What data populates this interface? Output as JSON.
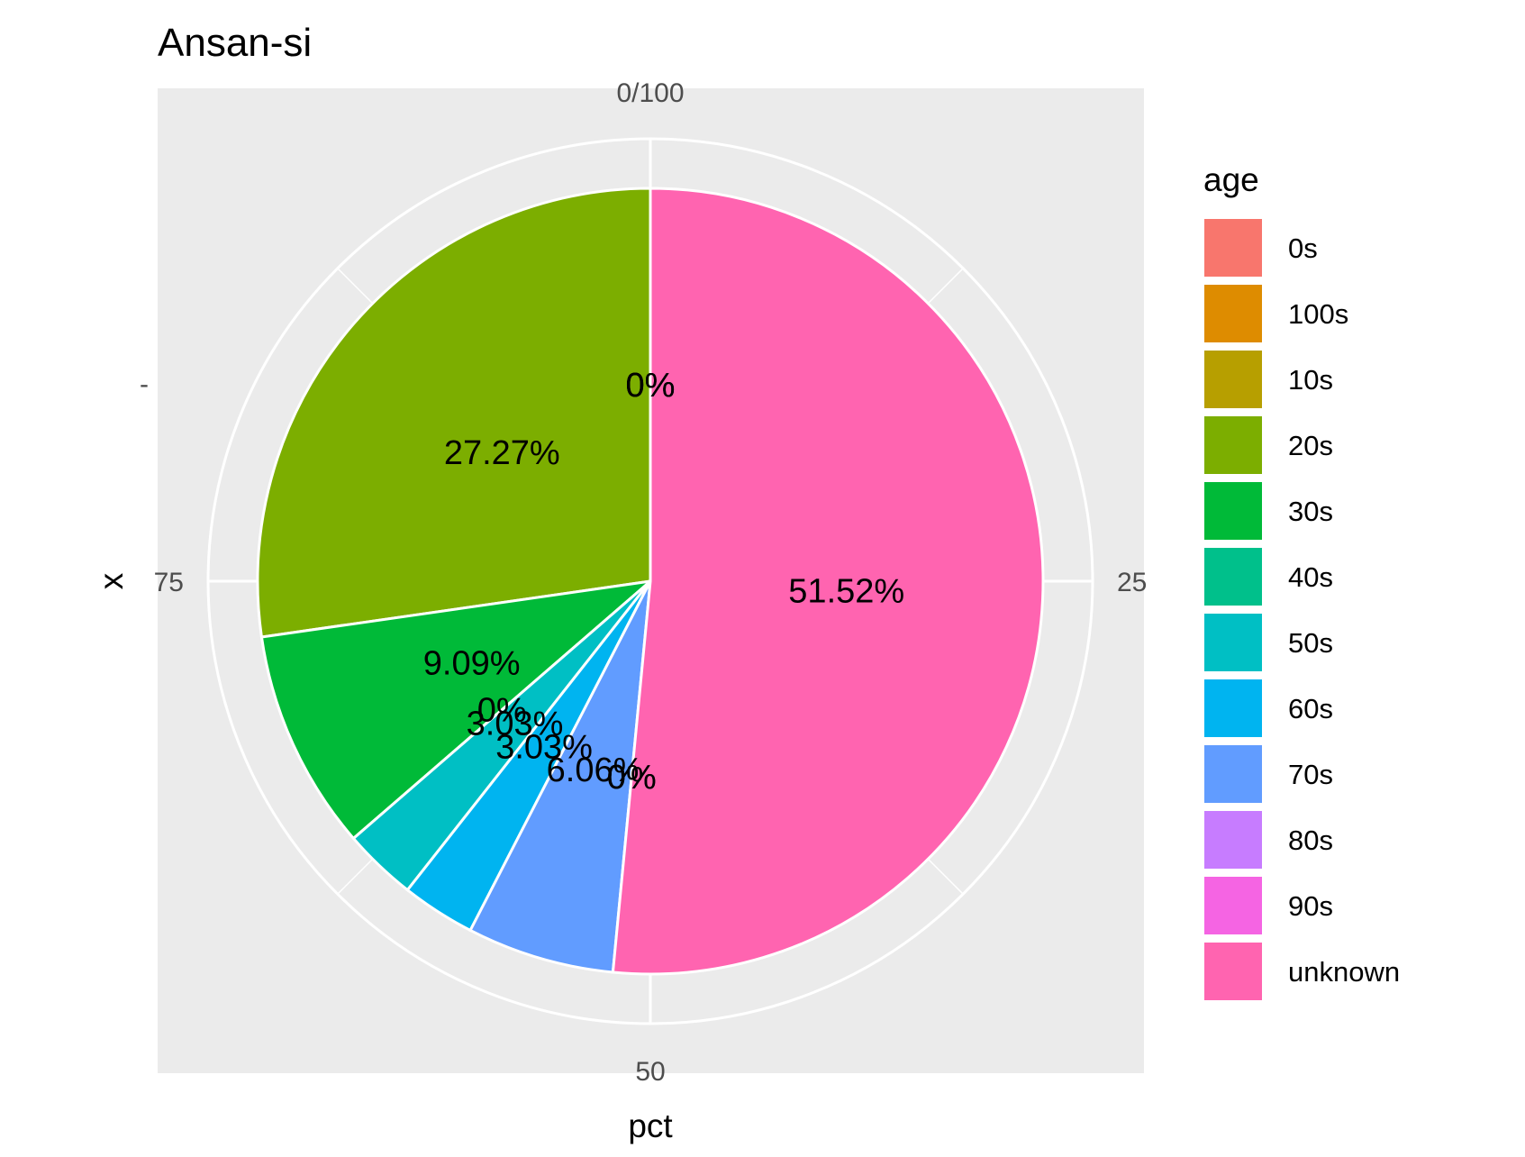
{
  "chart_data": {
    "type": "pie",
    "title": "Ansan-si",
    "xlabel": "pct",
    "ylabel": "x",
    "y_tick": "-",
    "theta_ticks": [
      "0/100",
      "25",
      "50",
      "75"
    ],
    "theta_tick_values": [
      0,
      25,
      50,
      75
    ],
    "legend": {
      "title": "age",
      "position": "right"
    },
    "categories": [
      "0s",
      "100s",
      "10s",
      "20s",
      "30s",
      "40s",
      "50s",
      "60s",
      "70s",
      "80s",
      "90s",
      "unknown"
    ],
    "values": [
      0,
      0,
      0,
      27.27,
      9.09,
      0,
      3.03,
      3.03,
      6.06,
      0,
      0,
      51.52
    ],
    "labels": [
      "0%",
      "0%",
      "0%",
      "27.27%",
      "9.09%",
      "0%",
      "3.03%",
      "3.03%",
      "6.06%",
      "0%",
      "0%",
      "51.52%"
    ],
    "colors": [
      "#F8766D",
      "#DE8C00",
      "#B79F00",
      "#7CAE00",
      "#00BA38",
      "#00C08B",
      "#00BFC4",
      "#00B4F0",
      "#619CFF",
      "#C77CFF",
      "#F564E3",
      "#FF64B0"
    ],
    "panel_background": "#EBEBEB",
    "grid_color": "#FFFFFF"
  }
}
